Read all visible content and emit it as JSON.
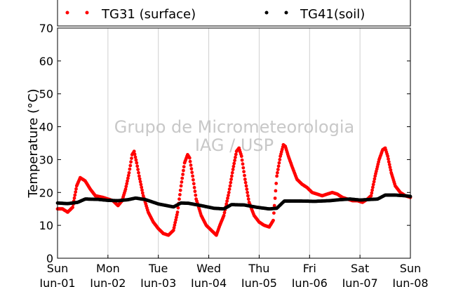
{
  "chart_data": {
    "type": "scatter",
    "ylabel": "Temperature (°C)",
    "ylim": [
      0,
      70
    ],
    "yticks": [
      0,
      10,
      20,
      30,
      40,
      50,
      60,
      70
    ],
    "xlim": [
      0,
      7
    ],
    "xticks": [
      {
        "day": 0,
        "line1": "Sun",
        "line2": "Jun-01"
      },
      {
        "day": 1,
        "line1": "Mon",
        "line2": "Jun-02"
      },
      {
        "day": 2,
        "line1": "Tue",
        "line2": "Jun-03"
      },
      {
        "day": 3,
        "line1": "Wed",
        "line2": "Jun-04"
      },
      {
        "day": 4,
        "line1": "Thu",
        "line2": "Jun-05"
      },
      {
        "day": 5,
        "line1": "Fri",
        "line2": "Jun-06"
      },
      {
        "day": 6,
        "line1": "Sat",
        "line2": "Jun-07"
      },
      {
        "day": 7,
        "line1": "Sun",
        "line2": "Jun-08"
      }
    ],
    "grid": "vertical",
    "legend_placement": "top",
    "watermark": [
      "Grupo de Micrometeorologia",
      "IAG / USP"
    ],
    "series": [
      {
        "name": "TG31 (surface)",
        "color": "#ff0000",
        "points": [
          [
            0.0,
            15.0
          ],
          [
            0.1,
            15.0
          ],
          [
            0.2,
            14.0
          ],
          [
            0.3,
            15.5
          ],
          [
            0.38,
            22.0
          ],
          [
            0.45,
            24.5
          ],
          [
            0.55,
            23.5
          ],
          [
            0.65,
            21.0
          ],
          [
            0.75,
            19.0
          ],
          [
            0.9,
            18.5
          ],
          [
            1.0,
            18.0
          ],
          [
            1.1,
            17.5
          ],
          [
            1.2,
            16.0
          ],
          [
            1.28,
            17.5
          ],
          [
            1.35,
            21.0
          ],
          [
            1.42,
            26.0
          ],
          [
            1.48,
            31.5
          ],
          [
            1.52,
            32.5
          ],
          [
            1.57,
            29.0
          ],
          [
            1.62,
            25.0
          ],
          [
            1.7,
            19.0
          ],
          [
            1.8,
            14.0
          ],
          [
            1.9,
            11.0
          ],
          [
            2.0,
            9.0
          ],
          [
            2.1,
            7.5
          ],
          [
            2.2,
            7.0
          ],
          [
            2.3,
            8.5
          ],
          [
            2.38,
            14.0
          ],
          [
            2.45,
            22.0
          ],
          [
            2.52,
            29.0
          ],
          [
            2.58,
            31.5
          ],
          [
            2.62,
            30.5
          ],
          [
            2.68,
            25.0
          ],
          [
            2.75,
            18.0
          ],
          [
            2.85,
            13.0
          ],
          [
            2.95,
            10.0
          ],
          [
            3.05,
            8.5
          ],
          [
            3.15,
            7.0
          ],
          [
            3.22,
            10.0
          ],
          [
            3.3,
            13.0
          ],
          [
            3.4,
            20.0
          ],
          [
            3.48,
            27.0
          ],
          [
            3.55,
            32.5
          ],
          [
            3.6,
            33.5
          ],
          [
            3.65,
            31.0
          ],
          [
            3.72,
            24.0
          ],
          [
            3.8,
            17.0
          ],
          [
            3.9,
            13.0
          ],
          [
            4.0,
            11.0
          ],
          [
            4.1,
            10.0
          ],
          [
            4.2,
            9.5
          ],
          [
            4.28,
            11.5
          ],
          [
            4.35,
            25.0
          ],
          [
            4.42,
            31.0
          ],
          [
            4.48,
            34.5
          ],
          [
            4.52,
            34.0
          ],
          [
            4.58,
            31.0
          ],
          [
            4.65,
            28.0
          ],
          [
            4.75,
            24.0
          ],
          [
            4.85,
            22.5
          ],
          [
            4.95,
            21.5
          ],
          [
            5.05,
            20.0
          ],
          [
            5.15,
            19.5
          ],
          [
            5.25,
            19.0
          ],
          [
            5.35,
            19.5
          ],
          [
            5.45,
            20.0
          ],
          [
            5.55,
            19.5
          ],
          [
            5.65,
            18.5
          ],
          [
            5.75,
            18.0
          ],
          [
            5.85,
            17.5
          ],
          [
            5.95,
            17.5
          ],
          [
            6.05,
            17.0
          ],
          [
            6.15,
            18.0
          ],
          [
            6.22,
            19.0
          ],
          [
            6.3,
            25.0
          ],
          [
            6.38,
            30.0
          ],
          [
            6.45,
            33.0
          ],
          [
            6.5,
            33.5
          ],
          [
            6.55,
            31.0
          ],
          [
            6.62,
            26.0
          ],
          [
            6.7,
            22.0
          ],
          [
            6.8,
            20.0
          ],
          [
            6.9,
            19.0
          ],
          [
            7.0,
            18.5
          ]
        ]
      },
      {
        "name": "TG41(soil)",
        "color": "#000000",
        "points": [
          [
            0.0,
            16.8
          ],
          [
            0.2,
            16.6
          ],
          [
            0.4,
            17.0
          ],
          [
            0.55,
            18.0
          ],
          [
            0.8,
            17.9
          ],
          [
            1.0,
            17.6
          ],
          [
            1.2,
            17.5
          ],
          [
            1.4,
            17.8
          ],
          [
            1.55,
            18.3
          ],
          [
            1.75,
            17.8
          ],
          [
            2.0,
            16.5
          ],
          [
            2.3,
            15.6
          ],
          [
            2.45,
            16.8
          ],
          [
            2.6,
            16.7
          ],
          [
            2.85,
            16.0
          ],
          [
            3.1,
            15.2
          ],
          [
            3.3,
            15.0
          ],
          [
            3.45,
            16.3
          ],
          [
            3.7,
            16.2
          ],
          [
            3.95,
            15.5
          ],
          [
            4.2,
            15.0
          ],
          [
            4.35,
            15.2
          ],
          [
            4.5,
            17.4
          ],
          [
            4.8,
            17.4
          ],
          [
            5.1,
            17.3
          ],
          [
            5.4,
            17.5
          ],
          [
            5.6,
            17.8
          ],
          [
            5.8,
            18.0
          ],
          [
            6.0,
            17.7
          ],
          [
            6.35,
            18.0
          ],
          [
            6.5,
            19.2
          ],
          [
            6.7,
            19.2
          ],
          [
            6.9,
            19.0
          ],
          [
            7.0,
            18.8
          ]
        ]
      }
    ]
  }
}
